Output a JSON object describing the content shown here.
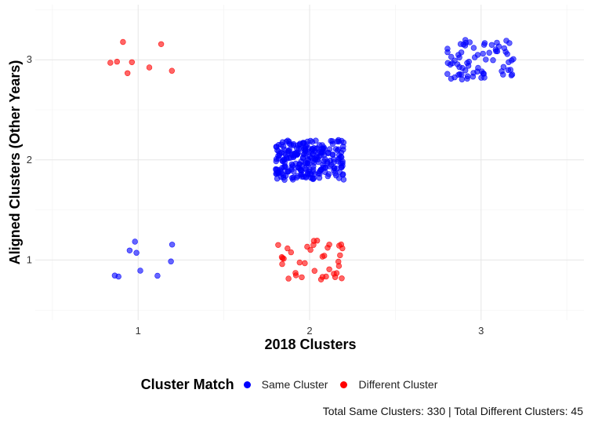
{
  "chart_data": {
    "type": "scatter",
    "xlabel": "2018 Clusters",
    "ylabel": "Aligned Clusters (Other Years)",
    "x_ticks": [
      1,
      2,
      3
    ],
    "y_ticks": [
      1,
      2,
      3
    ],
    "xlim": [
      0.4,
      3.6
    ],
    "ylim": [
      0.4,
      3.55
    ],
    "grid": true,
    "jitter": true,
    "legend": {
      "title": "Cluster Match",
      "placement": "bottom",
      "entries": [
        {
          "label": "Same Cluster",
          "color": "#0000ff"
        },
        {
          "label": "Different Cluster",
          "color": "#ff0000"
        }
      ]
    },
    "caption": "Total Same Clusters: 330 | Total Different Clusters: 45",
    "series": [
      {
        "name": "Same Cluster",
        "color": "#0000ff",
        "points": [
          {
            "x": 1,
            "y": 1,
            "count": 9
          },
          {
            "x": 2,
            "y": 2,
            "count": 250
          },
          {
            "x": 3,
            "y": 3,
            "count": 71
          }
        ]
      },
      {
        "name": "Different Cluster",
        "color": "#ff0000",
        "points": [
          {
            "x": 1,
            "y": 3,
            "count": 8
          },
          {
            "x": 2,
            "y": 1,
            "count": 37
          }
        ]
      }
    ]
  }
}
